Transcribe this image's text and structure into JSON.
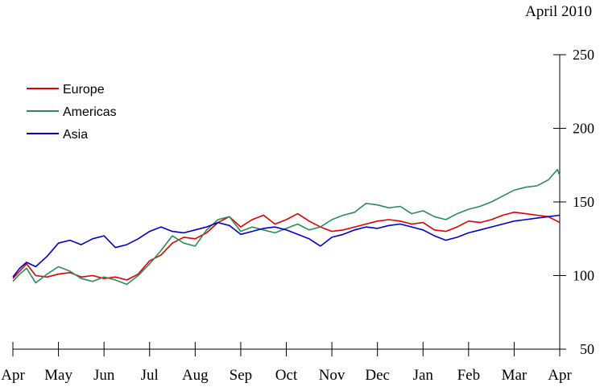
{
  "corner_label": "April 2010",
  "chart_data": {
    "type": "line",
    "title": "",
    "xlabel": "",
    "ylabel": "",
    "ylim": [
      50,
      250
    ],
    "y_ticks": [
      50,
      100,
      150,
      200,
      250
    ],
    "y_axis_side": "right",
    "x_tick_labels": [
      "Apr",
      "May",
      "Jun",
      "Jul",
      "Aug",
      "Sep",
      "Oct",
      "Nov",
      "Dec",
      "Jan",
      "Feb",
      "Mar",
      "Apr"
    ],
    "grid": false,
    "legend_position": "top-left",
    "series": [
      {
        "name": "Europe",
        "color": "#e00000",
        "x": [
          0,
          0.15,
          0.3,
          0.5,
          0.75,
          1,
          1.25,
          1.5,
          1.75,
          2,
          2.25,
          2.5,
          2.75,
          3,
          3.25,
          3.5,
          3.75,
          4,
          4.25,
          4.5,
          4.75,
          5,
          5.25,
          5.5,
          5.75,
          6,
          6.25,
          6.5,
          6.75,
          7,
          7.25,
          7.5,
          7.75,
          8,
          8.25,
          8.5,
          8.75,
          9,
          9.25,
          9.5,
          9.75,
          10,
          10.25,
          10.5,
          10.75,
          11,
          11.25,
          11.5,
          11.75,
          12
        ],
        "values": [
          98,
          103,
          108,
          100,
          99,
          101,
          102,
          99,
          100,
          98,
          99,
          97,
          101,
          110,
          114,
          122,
          126,
          125,
          129,
          136,
          140,
          133,
          138,
          141,
          135,
          138,
          142,
          137,
          133,
          130,
          131,
          133,
          135,
          137,
          138,
          137,
          135,
          136,
          131,
          130,
          133,
          137,
          136,
          138,
          141,
          143,
          142,
          141,
          140,
          136
        ]
      },
      {
        "name": "Americas",
        "color": "#2e8b57",
        "x": [
          0,
          0.15,
          0.3,
          0.5,
          0.75,
          1,
          1.25,
          1.5,
          1.75,
          2,
          2.25,
          2.5,
          2.75,
          3,
          3.25,
          3.5,
          3.75,
          4,
          4.25,
          4.5,
          4.75,
          5,
          5.25,
          5.5,
          5.75,
          6,
          6.25,
          6.5,
          6.75,
          7,
          7.25,
          7.5,
          7.75,
          8,
          8.25,
          8.5,
          8.75,
          9,
          9.25,
          9.5,
          9.75,
          10,
          10.25,
          10.5,
          10.75,
          11,
          11.25,
          11.5,
          11.75,
          11.95,
          12
        ],
        "values": [
          96,
          101,
          105,
          95,
          101,
          106,
          103,
          98,
          96,
          99,
          97,
          94,
          100,
          108,
          117,
          127,
          122,
          120,
          131,
          138,
          140,
          130,
          133,
          131,
          129,
          132,
          135,
          131,
          133,
          138,
          141,
          143,
          149,
          148,
          146,
          147,
          142,
          144,
          140,
          138,
          142,
          145,
          147,
          150,
          154,
          158,
          160,
          161,
          165,
          172,
          168
        ]
      },
      {
        "name": "Asia",
        "color": "#0000cc",
        "x": [
          0,
          0.15,
          0.3,
          0.5,
          0.75,
          1,
          1.25,
          1.5,
          1.75,
          2,
          2.25,
          2.5,
          2.75,
          3,
          3.25,
          3.5,
          3.75,
          4,
          4.25,
          4.5,
          4.75,
          5,
          5.25,
          5.5,
          5.75,
          6,
          6.25,
          6.5,
          6.75,
          7,
          7.25,
          7.5,
          7.75,
          8,
          8.25,
          8.5,
          8.75,
          9,
          9.25,
          9.5,
          9.75,
          10,
          10.25,
          10.5,
          10.75,
          11,
          11.25,
          11.5,
          11.75,
          12
        ],
        "values": [
          99,
          105,
          109,
          106,
          113,
          122,
          124,
          121,
          125,
          127,
          119,
          121,
          125,
          130,
          133,
          130,
          129,
          131,
          133,
          136,
          134,
          128,
          130,
          132,
          133,
          131,
          128,
          125,
          120,
          126,
          128,
          131,
          133,
          132,
          134,
          135,
          133,
          131,
          127,
          124,
          126,
          129,
          131,
          133,
          135,
          137,
          138,
          139,
          140,
          141
        ]
      }
    ]
  }
}
